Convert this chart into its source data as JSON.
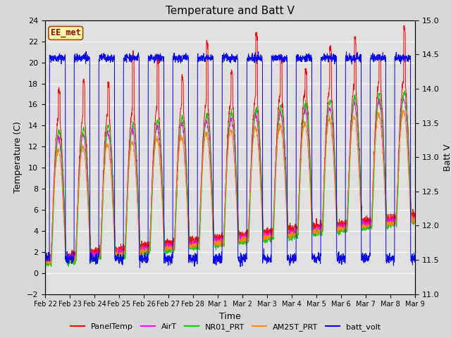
{
  "title": "Temperature and Batt V",
  "xlabel": "Time",
  "ylabel_left": "Temperature (C)",
  "ylabel_right": "Batt V",
  "annotation": "EE_met",
  "ylim_left": [
    -2,
    24
  ],
  "ylim_right": [
    11.0,
    15.0
  ],
  "yticks_left": [
    -2,
    0,
    2,
    4,
    6,
    8,
    10,
    12,
    14,
    16,
    18,
    20,
    22,
    24
  ],
  "yticks_right": [
    11.0,
    11.5,
    12.0,
    12.5,
    13.0,
    13.5,
    14.0,
    14.5,
    15.0
  ],
  "fig_bg_color": "#d8d8d8",
  "plot_bg_color": "#e0e0e0",
  "line_colors": {
    "PanelTemp": "#ff0000",
    "AirT": "#ff00ff",
    "NR01_PRT": "#00cc00",
    "AM25T_PRT": "#ff8800",
    "batt_volt": "#0000ff"
  },
  "legend_labels": [
    "PanelTemp",
    "AirT",
    "NR01_PRT",
    "AM25T_PRT",
    "batt_volt"
  ],
  "n_days": 15,
  "pts_per_day": 144,
  "title_fontsize": 11,
  "axis_fontsize": 9,
  "tick_fontsize": 8,
  "legend_fontsize": 8
}
